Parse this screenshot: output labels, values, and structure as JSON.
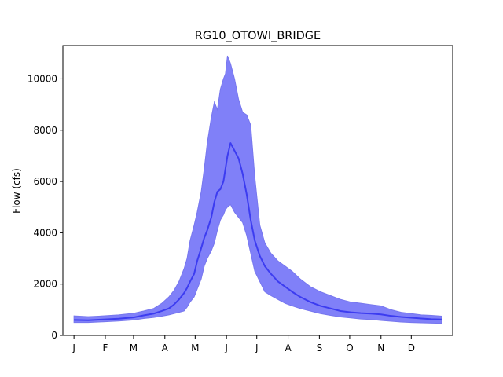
{
  "chart_data": {
    "type": "area",
    "title": "RG10_OTOWI_BRIDGE",
    "xlabel": "",
    "ylabel": "Flow (cfs)",
    "x_tick_labels": [
      "J",
      "F",
      "M",
      "A",
      "M",
      "J",
      "J",
      "A",
      "S",
      "O",
      "N",
      "D"
    ],
    "x_tick_days": [
      1,
      32,
      60,
      91,
      121,
      152,
      182,
      213,
      244,
      274,
      305,
      335
    ],
    "xlim": [
      -10,
      376
    ],
    "ylim": [
      0,
      11300
    ],
    "y_ticks": [
      0,
      2000,
      4000,
      6000,
      8000,
      10000
    ],
    "grid": false,
    "colors": {
      "band": "#8080f8",
      "band_edge": "#7777ee",
      "median": "#3c3cf0"
    },
    "x": [
      1,
      15,
      30,
      45,
      60,
      70,
      80,
      88,
      95,
      100,
      105,
      110,
      113,
      116,
      120,
      123,
      127,
      130,
      133,
      137,
      140,
      143,
      146,
      149,
      151,
      153,
      156,
      160,
      164,
      168,
      172,
      176,
      180,
      185,
      190,
      196,
      203,
      210,
      217,
      225,
      235,
      245,
      255,
      265,
      275,
      285,
      295,
      305,
      315,
      325,
      335,
      345,
      355,
      365
    ],
    "series": [
      {
        "values": [
          600,
          590,
          620,
          650,
          700,
          780,
          850,
          950,
          1050,
          1200,
          1400,
          1650,
          1850,
          2100,
          2400,
          2900,
          3400,
          3800,
          4100,
          4600,
          5200,
          5600,
          5700,
          6000,
          6500,
          7000,
          7500,
          7200,
          6900,
          6300,
          5500,
          4500,
          3700,
          3100,
          2700,
          2400,
          2100,
          1900,
          1700,
          1500,
          1300,
          1150,
          1050,
          950,
          900,
          870,
          850,
          820,
          760,
          720,
          690,
          660,
          630,
          620
        ]
      },
      {
        "values": [
          500,
          500,
          530,
          560,
          600,
          660,
          700,
          750,
          800,
          850,
          900,
          950,
          1100,
          1300,
          1500,
          1800,
          2200,
          2700,
          3000,
          3300,
          3600,
          4100,
          4500,
          4700,
          4900,
          5000,
          5100,
          4800,
          4600,
          4400,
          3900,
          3200,
          2500,
          2100,
          1700,
          1550,
          1400,
          1250,
          1150,
          1050,
          950,
          850,
          780,
          720,
          680,
          640,
          620,
          580,
          550,
          520,
          500,
          490,
          480,
          470
        ]
      },
      {
        "values": [
          760,
          730,
          760,
          800,
          860,
          950,
          1050,
          1250,
          1500,
          1750,
          2100,
          2600,
          3000,
          3700,
          4300,
          4800,
          5600,
          6500,
          7500,
          8500,
          9100,
          8800,
          9600,
          10000,
          10200,
          10900,
          10600,
          10000,
          9200,
          8700,
          8600,
          8200,
          6200,
          4300,
          3600,
          3200,
          2900,
          2700,
          2500,
          2200,
          1900,
          1700,
          1550,
          1400,
          1300,
          1250,
          1200,
          1150,
          1000,
          900,
          850,
          800,
          780,
          750
        ]
      }
    ]
  }
}
